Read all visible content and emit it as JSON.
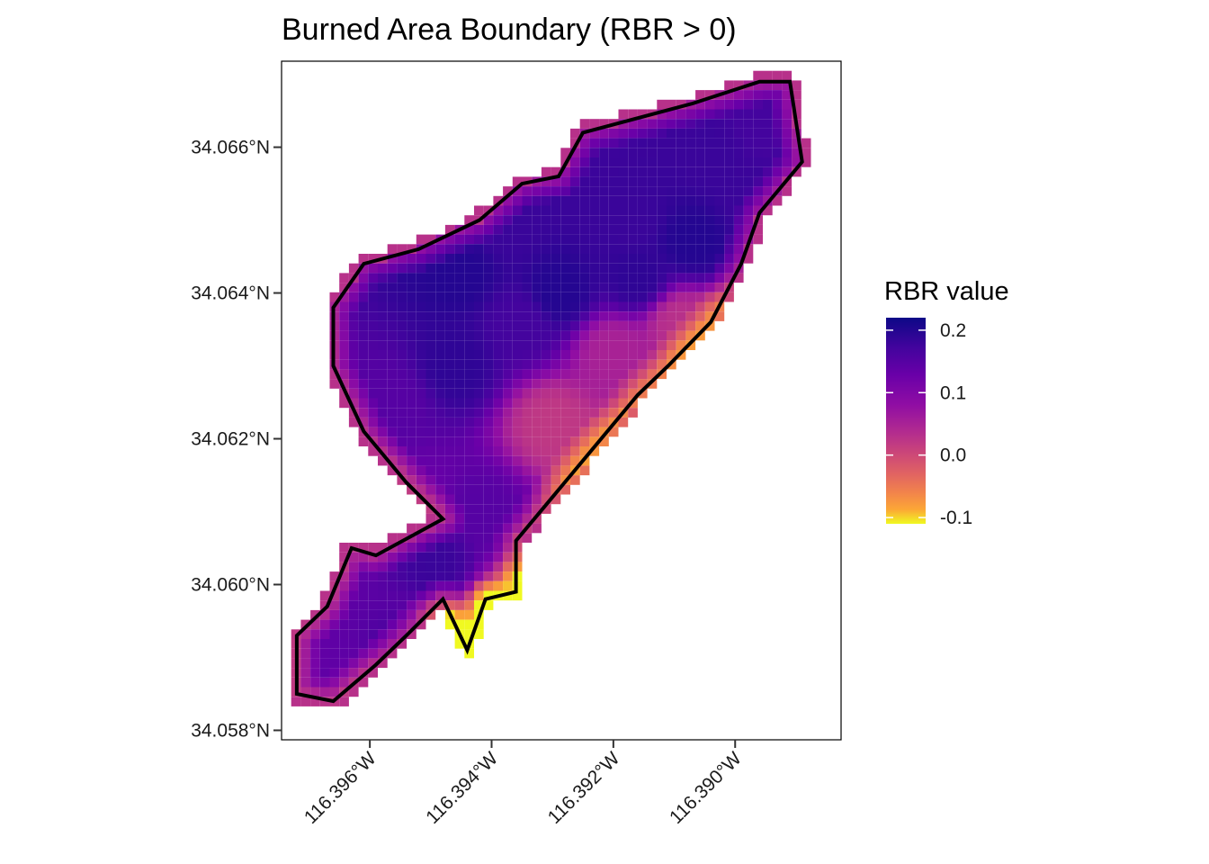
{
  "chart_data": {
    "type": "heatmap",
    "title": "Burned Area Boundary (RBR > 0)",
    "xlabel": "",
    "ylabel": "",
    "x_ticks": [
      {
        "value": -116.396,
        "label": "116.396°W"
      },
      {
        "value": -116.394,
        "label": "116.394°W"
      },
      {
        "value": -116.392,
        "label": "116.392°W"
      },
      {
        "value": -116.39,
        "label": "116.390°W"
      }
    ],
    "y_ticks": [
      {
        "value": 34.058,
        "label": "34.058°N"
      },
      {
        "value": 34.06,
        "label": "34.060°N"
      },
      {
        "value": 34.062,
        "label": "34.062°N"
      },
      {
        "value": 34.064,
        "label": "34.064°N"
      },
      {
        "value": 34.066,
        "label": "34.066°N"
      }
    ],
    "xlim": [
      -116.39745,
      -116.38826
    ],
    "ylim": [
      34.05787,
      34.06718
    ],
    "grid": false,
    "colorbar": {
      "title": "RBR value",
      "palette": "plasma (reversed)",
      "range": [
        -0.11,
        0.22
      ],
      "ticks": [
        {
          "value": 0.2,
          "label": "0.2"
        },
        {
          "value": 0.1,
          "label": "0.1"
        },
        {
          "value": 0.0,
          "label": "0.0"
        },
        {
          "value": -0.1,
          "label": "-0.1"
        }
      ],
      "placement": "right"
    },
    "boundary_label": "RBR > 0",
    "boundary_color": "#000000",
    "boundary_vertices": [
      [
        -116.3925,
        34.0662
      ],
      [
        -116.3907,
        34.0666
      ],
      [
        -116.3896,
        34.0669
      ],
      [
        -116.3891,
        34.0669
      ],
      [
        -116.3889,
        34.0658
      ],
      [
        -116.3896,
        34.0651
      ],
      [
        -116.3899,
        34.0644
      ],
      [
        -116.3904,
        34.0636
      ],
      [
        -116.3911,
        34.063
      ],
      [
        -116.3916,
        34.0626
      ],
      [
        -116.3922,
        34.062
      ],
      [
        -116.393,
        34.0612
      ],
      [
        -116.3936,
        34.0606
      ],
      [
        -116.3936,
        34.0599
      ],
      [
        -116.3941,
        34.0598
      ],
      [
        -116.3944,
        34.0591
      ],
      [
        -116.3948,
        34.0598
      ],
      [
        -116.3954,
        34.0593
      ],
      [
        -116.3959,
        34.0589
      ],
      [
        -116.3966,
        34.0584
      ],
      [
        -116.3972,
        34.0585
      ],
      [
        -116.3972,
        34.0593
      ],
      [
        -116.3967,
        34.0597
      ],
      [
        -116.3963,
        34.0605
      ],
      [
        -116.3959,
        34.0604
      ],
      [
        -116.3948,
        34.0609
      ],
      [
        -116.3954,
        34.0614
      ],
      [
        -116.3961,
        34.0621
      ],
      [
        -116.3966,
        34.063
      ],
      [
        -116.3966,
        34.0638
      ],
      [
        -116.3961,
        34.0644
      ],
      [
        -116.3952,
        34.0646
      ],
      [
        -116.3942,
        34.065
      ],
      [
        -116.3935,
        34.0655
      ],
      [
        -116.3929,
        34.0656
      ],
      [
        -116.3925,
        34.0662
      ]
    ],
    "values": [
      {
        "lon": -116.396,
        "lat": 34.0586,
        "rbr": 0.14
      },
      {
        "lon": -116.3955,
        "lat": 34.0592,
        "rbr": 0.16
      },
      {
        "lon": -116.3949,
        "lat": 34.0603,
        "rbr": 0.18
      },
      {
        "lon": -116.3946,
        "lat": 34.059,
        "rbr": -0.09
      },
      {
        "lon": -116.3938,
        "lat": 34.0596,
        "rbr": -0.02
      },
      {
        "lon": -116.3952,
        "lat": 34.0612,
        "rbr": 0.13
      },
      {
        "lon": -116.3942,
        "lat": 34.061,
        "rbr": 0.15
      },
      {
        "lon": -116.393,
        "lat": 34.0622,
        "rbr": 0.02
      },
      {
        "lon": -116.3956,
        "lat": 34.0625,
        "rbr": 0.15
      },
      {
        "lon": -116.3946,
        "lat": 34.063,
        "rbr": 0.19
      },
      {
        "lon": -116.3935,
        "lat": 34.0636,
        "rbr": 0.17
      },
      {
        "lon": -116.3929,
        "lat": 34.064,
        "rbr": 0.2
      },
      {
        "lon": -116.3945,
        "lat": 34.0643,
        "rbr": 0.2
      },
      {
        "lon": -116.3938,
        "lat": 34.0649,
        "rbr": 0.18
      },
      {
        "lon": -116.3916,
        "lat": 34.0642,
        "rbr": 0.19
      },
      {
        "lon": -116.3917,
        "lat": 34.065,
        "rbr": 0.18
      },
      {
        "lon": -116.3907,
        "lat": 34.0647,
        "rbr": 0.2
      },
      {
        "lon": -116.3897,
        "lat": 34.0653,
        "rbr": 0.18
      },
      {
        "lon": -116.3903,
        "lat": 34.0659,
        "rbr": 0.18
      },
      {
        "lon": -116.3896,
        "lat": 34.0663,
        "rbr": 0.17
      },
      {
        "lon": -116.392,
        "lat": 34.0632,
        "rbr": 0.05
      },
      {
        "lon": -116.3909,
        "lat": 34.0636,
        "rbr": 0.03
      }
    ]
  }
}
